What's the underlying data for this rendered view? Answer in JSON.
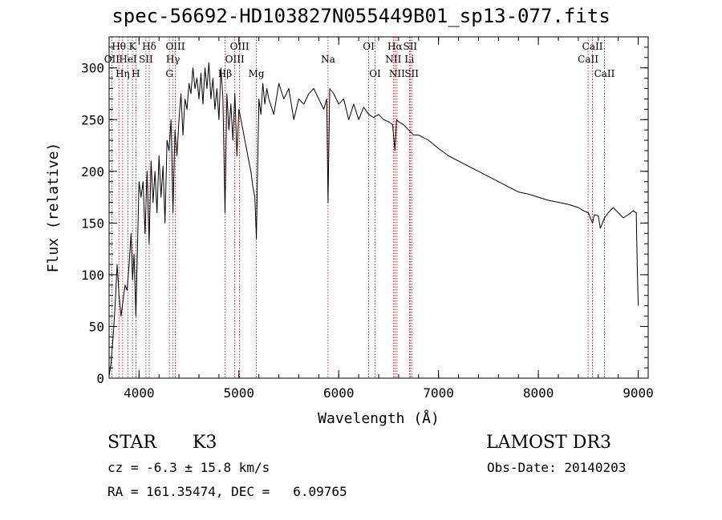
{
  "chart_data": {
    "type": "line",
    "title": "spec-56692-HD103827N055449B01_sp13-077.fits",
    "xlabel": "Wavelength (Å)",
    "ylabel": "Flux (relative)",
    "xlim": [
      3700,
      9100
    ],
    "ylim": [
      0,
      330
    ],
    "x_ticks": [
      4000,
      5000,
      6000,
      7000,
      8000,
      9000
    ],
    "y_ticks": [
      0,
      50,
      100,
      150,
      200,
      250,
      300
    ],
    "grid": false,
    "series": [
      {
        "x": [
          3700,
          3720,
          3740,
          3760,
          3780,
          3800,
          3820,
          3840,
          3860,
          3880,
          3900,
          3920,
          3935,
          3950,
          3968,
          3990,
          4000,
          4020,
          4040,
          4060,
          4080,
          4101,
          4120,
          4140,
          4160,
          4180,
          4200,
          4220,
          4240,
          4260,
          4280,
          4300,
          4320,
          4340,
          4360,
          4380,
          4400,
          4420,
          4440,
          4460,
          4480,
          4500,
          4520,
          4540,
          4560,
          4580,
          4600,
          4620,
          4640,
          4660,
          4680,
          4700,
          4720,
          4740,
          4760,
          4780,
          4800,
          4820,
          4840,
          4861,
          4880,
          4900,
          4920,
          4940,
          4960,
          4980,
          5000,
          5020,
          5040,
          5060,
          5080,
          5100,
          5120,
          5140,
          5160,
          5175,
          5183,
          5200,
          5220,
          5240,
          5260,
          5280,
          5300,
          5350,
          5400,
          5450,
          5500,
          5550,
          5600,
          5650,
          5700,
          5750,
          5800,
          5850,
          5880,
          5893,
          5910,
          5950,
          6000,
          6050,
          6100,
          6150,
          6200,
          6250,
          6300,
          6350,
          6400,
          6450,
          6500,
          6540,
          6563,
          6580,
          6600,
          6650,
          6700,
          6750,
          6800,
          6900,
          7000,
          7100,
          7200,
          7300,
          7400,
          7500,
          7600,
          7700,
          7800,
          7900,
          8000,
          8100,
          8200,
          8300,
          8400,
          8450,
          8500,
          8542,
          8560,
          8600,
          8620,
          8662,
          8700,
          8750,
          8800,
          8850,
          8900,
          8950,
          8980,
          8990,
          9000
        ],
        "y": [
          2,
          15,
          40,
          70,
          110,
          80,
          60,
          75,
          90,
          85,
          110,
          140,
          95,
          120,
          60,
          150,
          190,
          175,
          190,
          140,
          200,
          130,
          210,
          170,
          200,
          160,
          215,
          175,
          205,
          150,
          230,
          220,
          250,
          160,
          240,
          215,
          250,
          275,
          235,
          270,
          260,
          285,
          275,
          300,
          280,
          290,
          270,
          295,
          265,
          300,
          280,
          305,
          270,
          290,
          260,
          280,
          250,
          300,
          270,
          160,
          275,
          240,
          265,
          230,
          275,
          215,
          260,
          250,
          240,
          230,
          220,
          210,
          200,
          185,
          175,
          135,
          180,
          270,
          255,
          285,
          265,
          280,
          270,
          255,
          285,
          270,
          280,
          250,
          270,
          265,
          275,
          280,
          270,
          260,
          270,
          170,
          280,
          275,
          265,
          270,
          250,
          265,
          250,
          262,
          255,
          252,
          255,
          250,
          248,
          245,
          220,
          250,
          248,
          245,
          240,
          235,
          235,
          230,
          222,
          215,
          210,
          205,
          200,
          195,
          190,
          185,
          180,
          178,
          175,
          172,
          170,
          168,
          165,
          162,
          160,
          150,
          158,
          157,
          145,
          155,
          160,
          165,
          160,
          155,
          158,
          162,
          160,
          110,
          70
        ]
      }
    ],
    "line_labels": [
      {
        "label": "Hθ",
        "x": 3798,
        "row": 1
      },
      {
        "label": "OII",
        "x": 3727,
        "row": 2
      },
      {
        "label": "Hη",
        "x": 3835,
        "row": 3
      },
      {
        "label": "K",
        "x": 3934,
        "row": 1
      },
      {
        "label": "HeI",
        "x": 3889,
        "row": 2
      },
      {
        "label": "H",
        "x": 3968,
        "row": 3
      },
      {
        "label": "Hδ",
        "x": 4102,
        "row": 1
      },
      {
        "label": "SII",
        "x": 4069,
        "row": 2
      },
      {
        "label": "OIII",
        "x": 4363,
        "row": 1
      },
      {
        "label": "Hγ",
        "x": 4340,
        "row": 2
      },
      {
        "label": "G",
        "x": 4304,
        "row": 3
      },
      {
        "label": "OIII",
        "x": 5007,
        "row": 1
      },
      {
        "label": "OIII",
        "x": 4959,
        "row": 2
      },
      {
        "label": "Hβ",
        "x": 4861,
        "row": 3
      },
      {
        "label": "Mg",
        "x": 5175,
        "row": 3
      },
      {
        "label": "Na",
        "x": 5893,
        "row": 2
      },
      {
        "label": "OI",
        "x": 6300,
        "row": 1
      },
      {
        "label": "OI",
        "x": 6364,
        "row": 3
      },
      {
        "label": "Hα",
        "x": 6563,
        "row": 1
      },
      {
        "label": "SII",
        "x": 6716,
        "row": 1
      },
      {
        "label": "NII",
        "x": 6548,
        "row": 2
      },
      {
        "label": "Li",
        "x": 6708,
        "row": 2
      },
      {
        "label": "NII",
        "x": 6584,
        "row": 3
      },
      {
        "label": "SII",
        "x": 6731,
        "row": 3
      },
      {
        "label": "CaII",
        "x": 8542,
        "row": 1
      },
      {
        "label": "CaII",
        "x": 8498,
        "row": 2
      },
      {
        "label": "CaII",
        "x": 8662,
        "row": 3
      }
    ]
  },
  "info": {
    "class_label": "STAR",
    "subclass": "K3",
    "cz": "cz = -6.3 ± 15.8 km/s",
    "coords": "RA = 161.35474, DEC =   6.09765",
    "survey": "LAMOST DR3",
    "obs_date": "Obs-Date: 20140203"
  },
  "colors": {
    "spectrum": "#000000",
    "line_markers": "#b00000"
  }
}
